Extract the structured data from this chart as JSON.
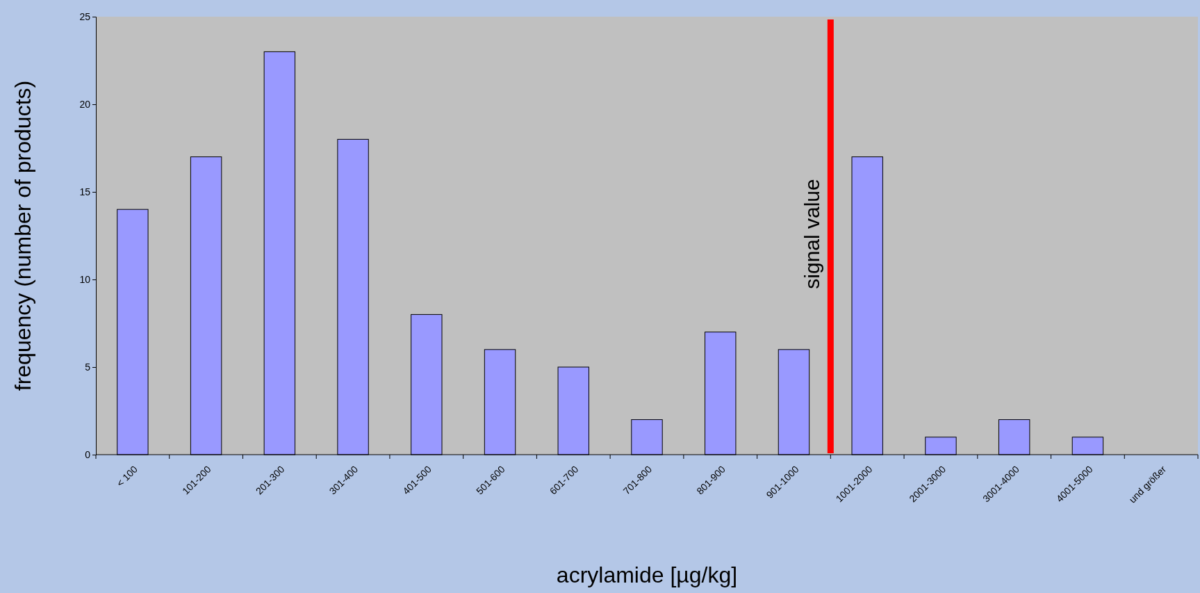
{
  "chart_data": {
    "type": "bar",
    "xlabel": "acrylamide [µg/kg]",
    "ylabel": "frequency (number of products)",
    "categories": [
      "< 100",
      "101-200",
      "201-300",
      "301-400",
      "401-500",
      "501-600",
      "601-700",
      "701-800",
      "801-900",
      "901-1000",
      "1001-2000",
      "2001-3000",
      "3001-4000",
      "4001-5000",
      "und größer"
    ],
    "values": [
      14,
      17,
      23,
      18,
      8,
      6,
      5,
      2,
      7,
      6,
      17,
      1,
      2,
      1,
      0
    ],
    "color": "#9999ff",
    "ylim": [
      0,
      25
    ],
    "yticks": [
      0,
      5,
      10,
      15,
      20,
      25
    ],
    "grid": false,
    "ref_lines": [
      {
        "axis": "x",
        "value": "1001-2000",
        "label": "signal value",
        "color": "#ff0000"
      }
    ]
  }
}
